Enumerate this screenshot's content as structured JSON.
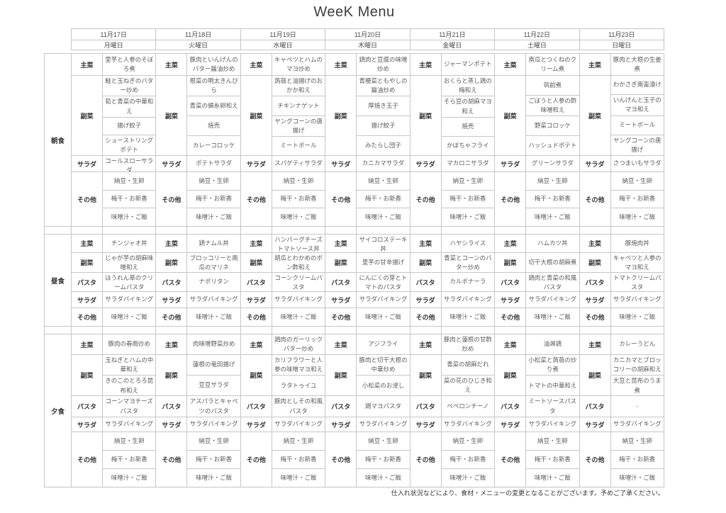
{
  "title": "WeeK Menu",
  "footer_note": "仕入れ状況などにより、食材・メニューの変更となることがございます。予めご了承ください。",
  "colors": {
    "border": "#c6c6c6",
    "label_text": "#333333",
    "item_text": "#5a5a5a"
  },
  "days": [
    {
      "date": "11月17日",
      "weekday": "月曜日"
    },
    {
      "date": "11月18日",
      "weekday": "火曜日"
    },
    {
      "date": "11月19日",
      "weekday": "水曜日"
    },
    {
      "date": "11月20日",
      "weekday": "木曜日"
    },
    {
      "date": "11月21日",
      "weekday": "金曜日"
    },
    {
      "date": "11月22日",
      "weekday": "土曜日"
    },
    {
      "date": "11月23日",
      "weekday": "日曜日"
    }
  ],
  "meal_labels": {
    "breakfast": "朝食",
    "lunch": "昼食",
    "dinner": "夕食"
  },
  "row_labels": {
    "main": "主菜",
    "side": "副菜",
    "pasta": "パスタ",
    "salad": "サラダ",
    "other": "その他"
  },
  "structure": {
    "breakfast": [
      "main",
      "side",
      "salad",
      "other"
    ],
    "lunch": [
      "main",
      "side",
      "pasta",
      "salad",
      "other"
    ],
    "dinner": [
      "main",
      "side",
      "pasta",
      "salad",
      "other"
    ]
  },
  "menu": {
    "breakfast": [
      {
        "main": [
          "里芋と人参のそぼろ煮"
        ],
        "side": [
          "鮭と玉ねぎのバター炒め",
          "筍と青菜の中華和え",
          "揚げ餃子",
          "シューストリングポテト"
        ],
        "salad": [
          "コールスローサラダ"
        ],
        "other": [
          "納豆・生卵",
          "梅干・お新香",
          "味噌汁・ご飯"
        ]
      },
      {
        "main": [
          "豚肉といんげんのバター醤油炒め"
        ],
        "side": [
          "根菜の明太きんぴら",
          "青菜の錦糸卵和え",
          "焼売",
          "カレーコロッケ"
        ],
        "salad": [
          "ポテトサラダ"
        ],
        "other": [
          "納豆・生卵",
          "梅干・お新香",
          "味噌汁・ご飯"
        ]
      },
      {
        "main": [
          "キャベツとハムのマヨ炒め"
        ],
        "side": [
          "蒟蒻と油揚げのおかか和え",
          "チキンナゲット",
          "ヤングコーンの唐揚げ",
          "ミートボール"
        ],
        "salad": [
          "スパゲティサラダ"
        ],
        "other": [
          "納豆・生卵",
          "梅干・お新香",
          "味噌汁・ご飯"
        ]
      },
      {
        "main": [
          "鶏肉と豆腐の味噌炒め"
        ],
        "side": [
          "青梗菜ともやしの醤油炒め",
          "厚焼き玉子",
          "揚げ餃子",
          "みたらし団子"
        ],
        "salad": [
          "カニカマサラダ"
        ],
        "other": [
          "納豆・生卵",
          "梅干・お新香",
          "味噌汁・ご飯"
        ]
      },
      {
        "main": [
          "ジャーマンポテト"
        ],
        "side": [
          "おくらと蒸し鶏の梅和え",
          "そら豆の胡麻マヨ和え",
          "焼売",
          "かぼちゃフライ"
        ],
        "salad": [
          "マカロニサラダ"
        ],
        "other": [
          "納豆・生卵",
          "梅干・お新香",
          "味噌汁・ご飯"
        ]
      },
      {
        "main": [
          "南瓜とつくねのクリーム煮"
        ],
        "side": [
          "筑前煮",
          "ごぼうと人参の酢味噌和え",
          "野菜コロッケ",
          "ハッシュドポテト"
        ],
        "salad": [
          "グリーンサラダ"
        ],
        "other": [
          "納豆・生卵",
          "梅干・お新香",
          "味噌汁・ご飯"
        ]
      },
      {
        "main": [
          "豚肉と大根の生姜煮"
        ],
        "side": [
          "わかさぎ南蛮漬け",
          "いんげんと玉子のマヨ和え",
          "ミートボール",
          "ヤングコーンの唐揚げ"
        ],
        "salad": [
          "さつまいもサラダ"
        ],
        "other": [
          "納豆・生卵",
          "梅干・お新香",
          "味噌汁・ご飯"
        ]
      }
    ],
    "lunch": [
      {
        "main": [
          "チンジャオ丼"
        ],
        "side": [
          "じゃが芋の胡麻味噌和え"
        ],
        "pasta": [
          "ほうれん草のクリームパスタ"
        ],
        "salad": [
          "サラダバイキング"
        ],
        "other": [
          "味噌汁・ご飯"
        ]
      },
      {
        "main": [
          "鶏ナムル丼"
        ],
        "side": [
          "ブロッコリーと南瓜のマリネ"
        ],
        "pasta": [
          "ナポリタン"
        ],
        "salad": [
          "サラダバイキング"
        ],
        "other": [
          "味噌汁・ご飯"
        ]
      },
      {
        "main": [
          "ハンバーグチーズトマトソース丼"
        ],
        "side": [
          "胡瓜とわかめのポン酢和え"
        ],
        "pasta": [
          "コーンクリームパスタ"
        ],
        "salad": [
          "サラダバイキング"
        ],
        "other": [
          "味噌汁・ご飯"
        ]
      },
      {
        "main": [
          "サイコロステーキ丼"
        ],
        "side": [
          "里芋の甘辛揚げ"
        ],
        "pasta": [
          "にんにくの芽とトマトのパスタ"
        ],
        "salad": [
          "サラダバイキング"
        ],
        "other": [
          "味噌汁・ご飯"
        ]
      },
      {
        "main": [
          "ハヤシライス"
        ],
        "side": [
          "青菜とコーンのバター炒め"
        ],
        "pasta": [
          "カルボナーラ"
        ],
        "salad": [
          "サラダバイキング"
        ],
        "other": [
          "味噌汁・ご飯"
        ]
      },
      {
        "main": [
          "ハムカツ丼"
        ],
        "side": [
          "切干大根の胡麻煮"
        ],
        "pasta": [
          "鶏肉と青菜の和風パスタ"
        ],
        "salad": [
          "サラダバイキング"
        ],
        "other": [
          "味噌汁・ご飯"
        ]
      },
      {
        "main": [
          "豚焼肉丼"
        ],
        "side": [
          "キャベツと人参のマヨ和え"
        ],
        "pasta": [
          "トマトクリームパスタ"
        ],
        "salad": [
          "サラダバイキング"
        ],
        "other": [
          "味噌汁・ご飯"
        ]
      }
    ],
    "dinner": [
      {
        "main": [
          "豚肉の春雨炒め"
        ],
        "side": [
          "玉ねぎとハムの中華和え",
          "きのこのとろろ昆布和え"
        ],
        "pasta": [
          "コーンマヨチーズパスタ"
        ],
        "salad": [
          "サラダバイキング"
        ],
        "other": [
          "納豆・生卵",
          "梅干・お新香",
          "味噌汁・ご飯"
        ]
      },
      {
        "main": [
          "肉味噌野菜炒め"
        ],
        "side": [
          "蓮根の竜田揚げ",
          "豆豆サラダ"
        ],
        "pasta": [
          "アスパラとキャベツのパスタ"
        ],
        "salad": [
          "サラダバイキング"
        ],
        "other": [
          "納豆・生卵",
          "梅干・お新香",
          "味噌汁・ご飯"
        ]
      },
      {
        "main": [
          "鶏肉のガーリックバター炒め"
        ],
        "side": [
          "カリフラワーと人参の味噌マヨ和え",
          "ラタトゥイユ"
        ],
        "pasta": [
          "豚肉としその和風パスタ"
        ],
        "salad": [
          "サラダバイキング"
        ],
        "other": [
          "納豆・生卵",
          "梅干・お新香",
          "味噌汁・ご飯"
        ]
      },
      {
        "main": [
          "アジフライ"
        ],
        "side": [
          "豚肉と切干大根の中華炒め",
          "小松菜のお浸し"
        ],
        "pasta": [
          "鶏マヨパスタ"
        ],
        "salad": [
          "サラダバイキング"
        ],
        "other": [
          "納豆・生卵",
          "梅干・お新香",
          "味噌汁・ご飯"
        ]
      },
      {
        "main": [
          "豚肉と蓮根の甘酢炒め"
        ],
        "side": [
          "青菜の胡麻だれ",
          "菜の花のひじき和え"
        ],
        "pasta": [
          "ペペロンチーノ"
        ],
        "salad": [
          "サラダバイキング"
        ],
        "other": [
          "納豆・生卵",
          "梅干・お新香",
          "味噌汁・ご飯"
        ]
      },
      {
        "main": [
          "油淋鶏"
        ],
        "side": [
          "小松菜と蒟蒻の炒り煮",
          "トマトの中華和え"
        ],
        "pasta": [
          "ミートソースパスタ"
        ],
        "salad": [
          "サラダバイキング"
        ],
        "other": [
          "納豆・生卵",
          "梅干・お新香",
          "味噌汁・ご飯"
        ]
      },
      {
        "main": [
          "カレーうどん"
        ],
        "side": [
          "カニカマとブロッコリーの胡麻和え",
          "大豆と昆布のうま煮"
        ],
        "pasta": [
          "-"
        ],
        "salad": [
          "サラダバイキング"
        ],
        "other": [
          "納豆・生卵",
          "梅干・お新香",
          "味噌汁・ご飯"
        ]
      }
    ]
  }
}
